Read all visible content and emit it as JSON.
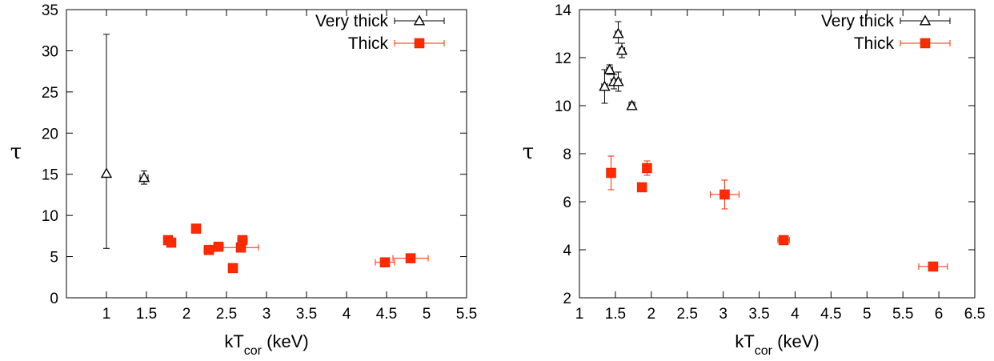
{
  "chart_data": [
    {
      "type": "scatter",
      "xlabel_main": "kT",
      "xlabel_sub": "cor",
      "xlabel_rest": " (keV)",
      "ylabel": "τ",
      "xlim": [
        0.5,
        5.5
      ],
      "ylim": [
        0,
        35
      ],
      "xticks": [
        {
          "v": 1,
          "label": "1"
        },
        {
          "v": 1.5,
          "label": "1.5"
        },
        {
          "v": 2,
          "label": "2"
        },
        {
          "v": 2.5,
          "label": "2.5"
        },
        {
          "v": 3,
          "label": "3"
        },
        {
          "v": 3.5,
          "label": "3.5"
        },
        {
          "v": 4,
          "label": "4"
        },
        {
          "v": 4.5,
          "label": "4.5"
        },
        {
          "v": 5,
          "label": "5"
        },
        {
          "v": 5.5,
          "label": "5.5"
        }
      ],
      "yticks": [
        {
          "v": 0,
          "label": "0"
        },
        {
          "v": 5,
          "label": "5"
        },
        {
          "v": 10,
          "label": "10"
        },
        {
          "v": 15,
          "label": "15"
        },
        {
          "v": 20,
          "label": "20"
        },
        {
          "v": 25,
          "label": "25"
        },
        {
          "v": 30,
          "label": "30"
        },
        {
          "v": 35,
          "label": "35"
        }
      ],
      "legend_position": "top-right",
      "series": [
        {
          "name": "Very thick",
          "marker": "open-triangle",
          "color": "#000000",
          "points": [
            {
              "x": 1.0,
              "y": 15.1,
              "ylo": 6.0,
              "yhi": 32.0
            },
            {
              "x": 1.47,
              "y": 14.6,
              "ylo": 13.8,
              "yhi": 15.4,
              "xlo": 1.42,
              "xhi": 1.52
            }
          ]
        },
        {
          "name": "Thick",
          "marker": "filled-square",
          "color": "#ff2a00",
          "points": [
            {
              "x": 1.77,
              "y": 7.0,
              "ylo": 6.6,
              "yhi": 7.4,
              "xlo": 1.72,
              "xhi": 1.82
            },
            {
              "x": 1.81,
              "y": 6.7,
              "ylo": 6.3,
              "yhi": 7.1,
              "xlo": 1.76,
              "xhi": 1.86
            },
            {
              "x": 2.12,
              "y": 8.4,
              "ylo": 8.0,
              "yhi": 8.8,
              "xlo": 2.07,
              "xhi": 2.17
            },
            {
              "x": 2.28,
              "y": 5.8,
              "ylo": 5.4,
              "yhi": 6.2,
              "xlo": 2.22,
              "xhi": 2.34
            },
            {
              "x": 2.4,
              "y": 6.2,
              "ylo": 5.8,
              "yhi": 6.6,
              "xlo": 2.34,
              "xhi": 2.46
            },
            {
              "x": 2.58,
              "y": 3.6,
              "ylo": 3.2,
              "yhi": 4.0,
              "xlo": 2.53,
              "xhi": 2.63
            },
            {
              "x": 2.68,
              "y": 6.1,
              "ylo": 5.7,
              "yhi": 6.5,
              "xlo": 2.3,
              "xhi": 2.9
            },
            {
              "x": 2.7,
              "y": 7.0,
              "ylo": 6.5,
              "yhi": 7.5,
              "xlo": 2.64,
              "xhi": 2.76
            },
            {
              "x": 4.48,
              "y": 4.3,
              "ylo": 3.9,
              "yhi": 4.7,
              "xlo": 4.36,
              "xhi": 4.6
            },
            {
              "x": 4.8,
              "y": 4.8,
              "ylo": 4.4,
              "yhi": 5.2,
              "xlo": 4.58,
              "xhi": 5.02
            }
          ]
        }
      ]
    },
    {
      "type": "scatter",
      "xlabel_main": "kT",
      "xlabel_sub": "cor",
      "xlabel_rest": " (keV)",
      "ylabel": "τ",
      "xlim": [
        1,
        6.5
      ],
      "ylim": [
        2,
        14
      ],
      "xticks": [
        {
          "v": 1,
          "label": "1"
        },
        {
          "v": 1.5,
          "label": "1.5"
        },
        {
          "v": 2,
          "label": "2"
        },
        {
          "v": 2.5,
          "label": "2.5"
        },
        {
          "v": 3,
          "label": "3"
        },
        {
          "v": 3.5,
          "label": "3.5"
        },
        {
          "v": 4,
          "label": "4"
        },
        {
          "v": 4.5,
          "label": "4.5"
        },
        {
          "v": 5,
          "label": "5"
        },
        {
          "v": 5.5,
          "label": "5.5"
        },
        {
          "v": 6,
          "label": "6"
        },
        {
          "v": 6.5,
          "label": "6.5"
        }
      ],
      "yticks": [
        {
          "v": 2,
          "label": "2"
        },
        {
          "v": 4,
          "label": "4"
        },
        {
          "v": 6,
          "label": "6"
        },
        {
          "v": 8,
          "label": "8"
        },
        {
          "v": 10,
          "label": "10"
        },
        {
          "v": 12,
          "label": "12"
        },
        {
          "v": 14,
          "label": "14"
        }
      ],
      "legend_position": "top-right",
      "series": [
        {
          "name": "Very thick",
          "marker": "open-triangle",
          "color": "#000000",
          "points": [
            {
              "x": 1.35,
              "y": 10.8,
              "ylo": 10.1,
              "yhi": 11.5,
              "xlo": 1.31,
              "xhi": 1.39
            },
            {
              "x": 1.42,
              "y": 11.5,
              "ylo": 11.3,
              "yhi": 11.7,
              "xlo": 1.38,
              "xhi": 1.46
            },
            {
              "x": 1.48,
              "y": 11.0,
              "ylo": 10.7,
              "yhi": 11.3,
              "xlo": 1.44,
              "xhi": 1.52
            },
            {
              "x": 1.54,
              "y": 11.0,
              "ylo": 10.6,
              "yhi": 11.4,
              "xlo": 1.5,
              "xhi": 1.58
            },
            {
              "x": 1.54,
              "y": 13.0,
              "ylo": 12.6,
              "yhi": 13.5,
              "xlo": 1.5,
              "xhi": 1.58
            },
            {
              "x": 1.59,
              "y": 12.3,
              "ylo": 12.0,
              "yhi": 12.6,
              "xlo": 1.55,
              "xhi": 1.63
            },
            {
              "x": 1.73,
              "y": 10.0,
              "ylo": 9.85,
              "yhi": 10.15,
              "xlo": 1.69,
              "xhi": 1.77
            }
          ]
        },
        {
          "name": "Thick",
          "marker": "filled-square",
          "color": "#ff2a00",
          "points": [
            {
              "x": 1.44,
              "y": 7.2,
              "ylo": 6.5,
              "yhi": 7.9,
              "xlo": 1.38,
              "xhi": 1.5
            },
            {
              "x": 1.87,
              "y": 6.6,
              "ylo": 6.45,
              "yhi": 6.75,
              "xlo": 1.82,
              "xhi": 1.92
            },
            {
              "x": 1.94,
              "y": 7.4,
              "ylo": 7.1,
              "yhi": 7.7,
              "xlo": 1.89,
              "xhi": 1.99
            },
            {
              "x": 3.02,
              "y": 6.3,
              "ylo": 5.7,
              "yhi": 6.9,
              "xlo": 2.82,
              "xhi": 3.22
            },
            {
              "x": 3.84,
              "y": 4.4,
              "ylo": 4.25,
              "yhi": 4.55,
              "xlo": 3.76,
              "xhi": 3.92
            },
            {
              "x": 5.92,
              "y": 3.3,
              "ylo": 3.15,
              "yhi": 3.45,
              "xlo": 5.72,
              "xhi": 6.12
            }
          ]
        }
      ]
    }
  ]
}
